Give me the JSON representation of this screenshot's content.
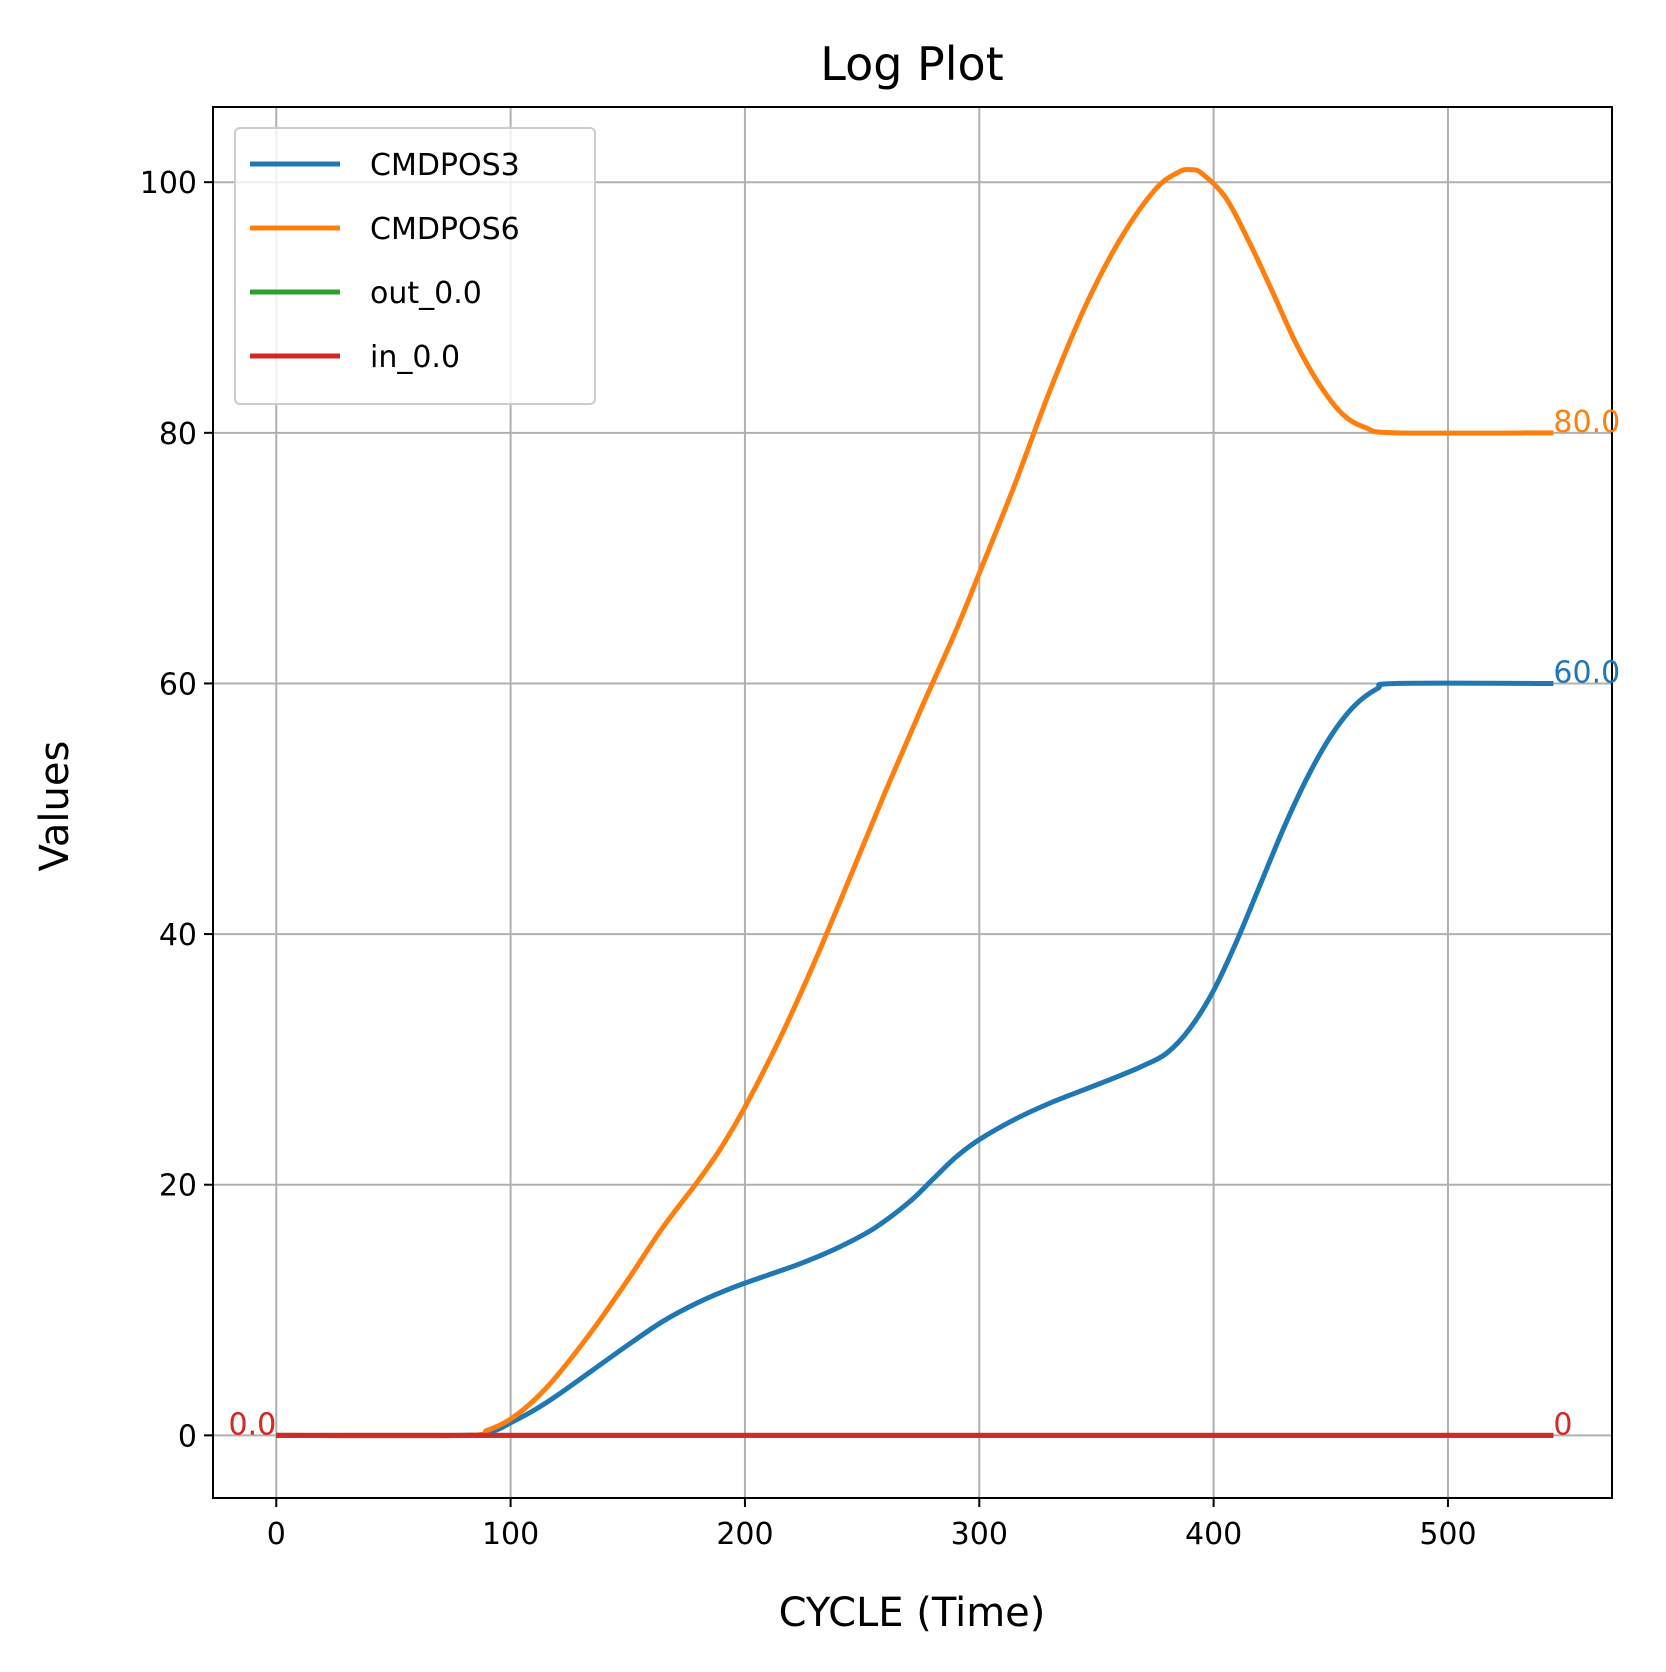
{
  "chart_data": {
    "type": "line",
    "title": "Log Plot",
    "xlabel": "CYCLE (Time)",
    "ylabel": "Values",
    "xlim": [
      -27,
      570
    ],
    "ylim": [
      -5,
      106
    ],
    "xticks": [
      0,
      100,
      200,
      300,
      400,
      500
    ],
    "yticks": [
      0,
      20,
      40,
      60,
      80,
      100
    ],
    "grid": true,
    "legend_position": "upper-left",
    "series": [
      {
        "name": "CMDPOS3",
        "color": "#1f77b4",
        "x": [
          0,
          80,
          92,
          100,
          110,
          120,
          135,
          150,
          165,
          180,
          195,
          210,
          225,
          240,
          255,
          270,
          280,
          290,
          300,
          315,
          330,
          345,
          360,
          370,
          380,
          390,
          400,
          410,
          420,
          430,
          440,
          450,
          460,
          470,
          478,
          545
        ],
        "y": [
          0,
          0,
          0.3,
          1.0,
          2.0,
          3.2,
          5.2,
          7.2,
          9.1,
          10.6,
          11.8,
          12.8,
          13.8,
          15.0,
          16.5,
          18.6,
          20.4,
          22.2,
          23.6,
          25.2,
          26.5,
          27.6,
          28.7,
          29.5,
          30.5,
          32.5,
          35.5,
          39.5,
          44.0,
          48.5,
          52.5,
          55.8,
          58.2,
          59.6,
          60.0,
          60.0
        ]
      },
      {
        "name": "CMDPOS6",
        "color": "#ff7f0e",
        "x": [
          0,
          80,
          90,
          100,
          110,
          120,
          135,
          150,
          165,
          180,
          190,
          200,
          215,
          230,
          245,
          260,
          275,
          290,
          300,
          315,
          330,
          345,
          360,
          375,
          385,
          390,
          395,
          405,
          415,
          425,
          435,
          445,
          455,
          465,
          478,
          545
        ],
        "y": [
          0,
          0,
          0.4,
          1.3,
          2.8,
          4.8,
          8.4,
          12.4,
          16.6,
          20.3,
          23.0,
          26.2,
          31.7,
          37.9,
          44.6,
          51.4,
          57.9,
          64.2,
          68.8,
          75.8,
          83.3,
          90.0,
          95.4,
          99.4,
          100.8,
          101.0,
          100.7,
          98.8,
          95.3,
          91.3,
          87.2,
          83.9,
          81.5,
          80.4,
          80.0,
          80.0
        ]
      },
      {
        "name": "out_0.0",
        "color": "#2ca02c",
        "x": [
          0,
          545
        ],
        "y": [
          0,
          0
        ]
      },
      {
        "name": "in_0.0",
        "color": "#d62728",
        "x": [
          0,
          545
        ],
        "y": [
          0,
          0
        ]
      }
    ],
    "annotations": [
      {
        "text": "80.0",
        "x": 545,
        "y": 80,
        "color": "#ff7f0e",
        "anchor": "start"
      },
      {
        "text": "60.0",
        "x": 545,
        "y": 60,
        "color": "#1f77b4",
        "anchor": "start"
      },
      {
        "text": "0",
        "x": 545,
        "y": 0,
        "color": "#d62728",
        "anchor": "start"
      },
      {
        "text": "0.0",
        "x": 0,
        "y": 0,
        "color": "#ff7f0e",
        "anchor": "end"
      },
      {
        "text": "0.0",
        "x": 0,
        "y": 0,
        "color": "#d62728",
        "anchor": "end"
      }
    ],
    "colors": {
      "grid": "#b0b0b0",
      "frame": "#000000",
      "legend_border": "#cccccc"
    }
  }
}
